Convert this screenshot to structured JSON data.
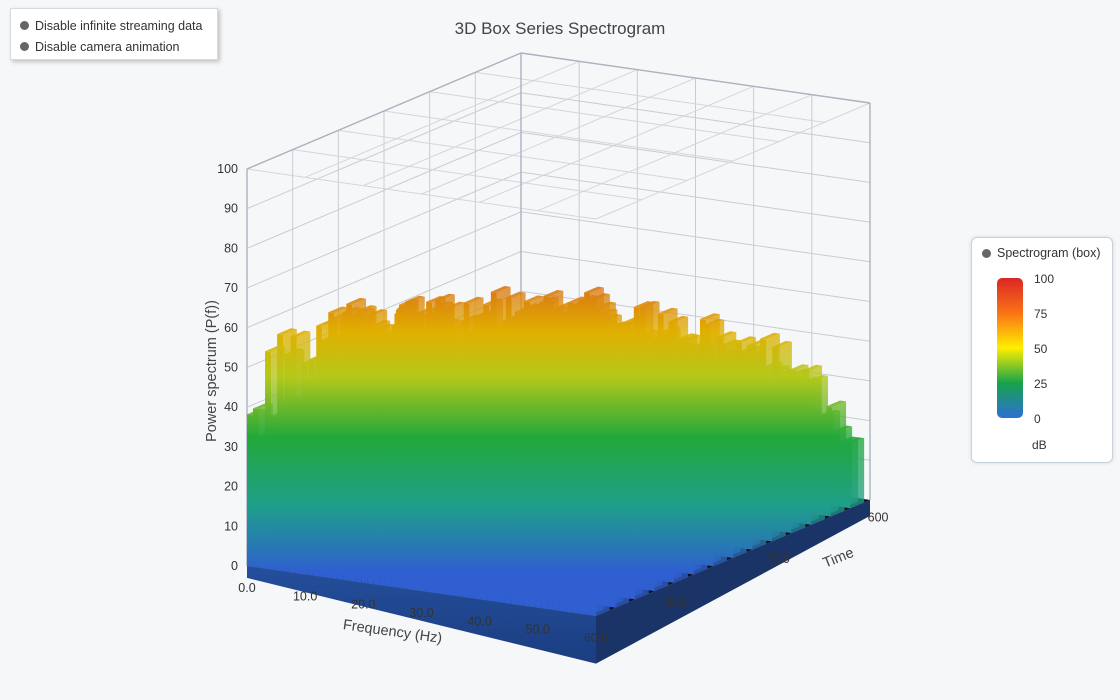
{
  "controls": [
    {
      "label": "Disable infinite streaming data"
    },
    {
      "label": "Disable camera animation"
    }
  ],
  "legend": {
    "series_name": "Spectrogram (box)",
    "ticks": [
      "100",
      "75",
      "50",
      "25",
      "0"
    ],
    "unit": "dB",
    "gradient": [
      "#2f6fd6",
      "#16a34a",
      "#ffee00",
      "#f97316",
      "#dc2626"
    ]
  },
  "chart_data": {
    "type": "3d-box",
    "title": "3D Box Series Spectrogram",
    "x_axis": {
      "label": "Frequency (Hz)",
      "range": [
        0,
        60
      ],
      "ticks": [
        "0.0",
        "10.0",
        "20.0",
        "30.0",
        "40.0",
        "50.0",
        "60.0"
      ]
    },
    "y_axis": {
      "label": "Power spectrum (P(f))",
      "range": [
        0,
        100
      ],
      "ticks": [
        "0",
        "10",
        "20",
        "30",
        "40",
        "50",
        "60",
        "70",
        "80",
        "90",
        "100"
      ]
    },
    "z_axis": {
      "label": "Time",
      "ticks": [
        "500",
        "550",
        "600"
      ]
    },
    "color_range": [
      0,
      100
    ],
    "grid": true,
    "series": [
      {
        "name": "Spectrogram (box)",
        "envelope": [
          {
            "frequency": 0,
            "peak": 40
          },
          {
            "frequency": 2,
            "peak": 50
          },
          {
            "frequency": 4,
            "peak": 57
          },
          {
            "frequency": 6,
            "peak": 63
          },
          {
            "frequency": 8,
            "peak": 67
          },
          {
            "frequency": 10,
            "peak": 68
          },
          {
            "frequency": 14,
            "peak": 69
          },
          {
            "frequency": 18,
            "peak": 69
          },
          {
            "frequency": 22,
            "peak": 66
          },
          {
            "frequency": 26,
            "peak": 64
          },
          {
            "frequency": 30,
            "peak": 63
          },
          {
            "frequency": 34,
            "peak": 63
          },
          {
            "frequency": 38,
            "peak": 63
          },
          {
            "frequency": 42,
            "peak": 62
          },
          {
            "frequency": 46,
            "peak": 60
          },
          {
            "frequency": 50,
            "peak": 57
          },
          {
            "frequency": 54,
            "peak": 53
          },
          {
            "frequency": 58,
            "peak": 46
          },
          {
            "frequency": 60,
            "peak": 28
          }
        ],
        "notches": [
          {
            "frequency": 22,
            "value": 4
          },
          {
            "frequency": 43,
            "value": 4
          }
        ]
      }
    ]
  }
}
